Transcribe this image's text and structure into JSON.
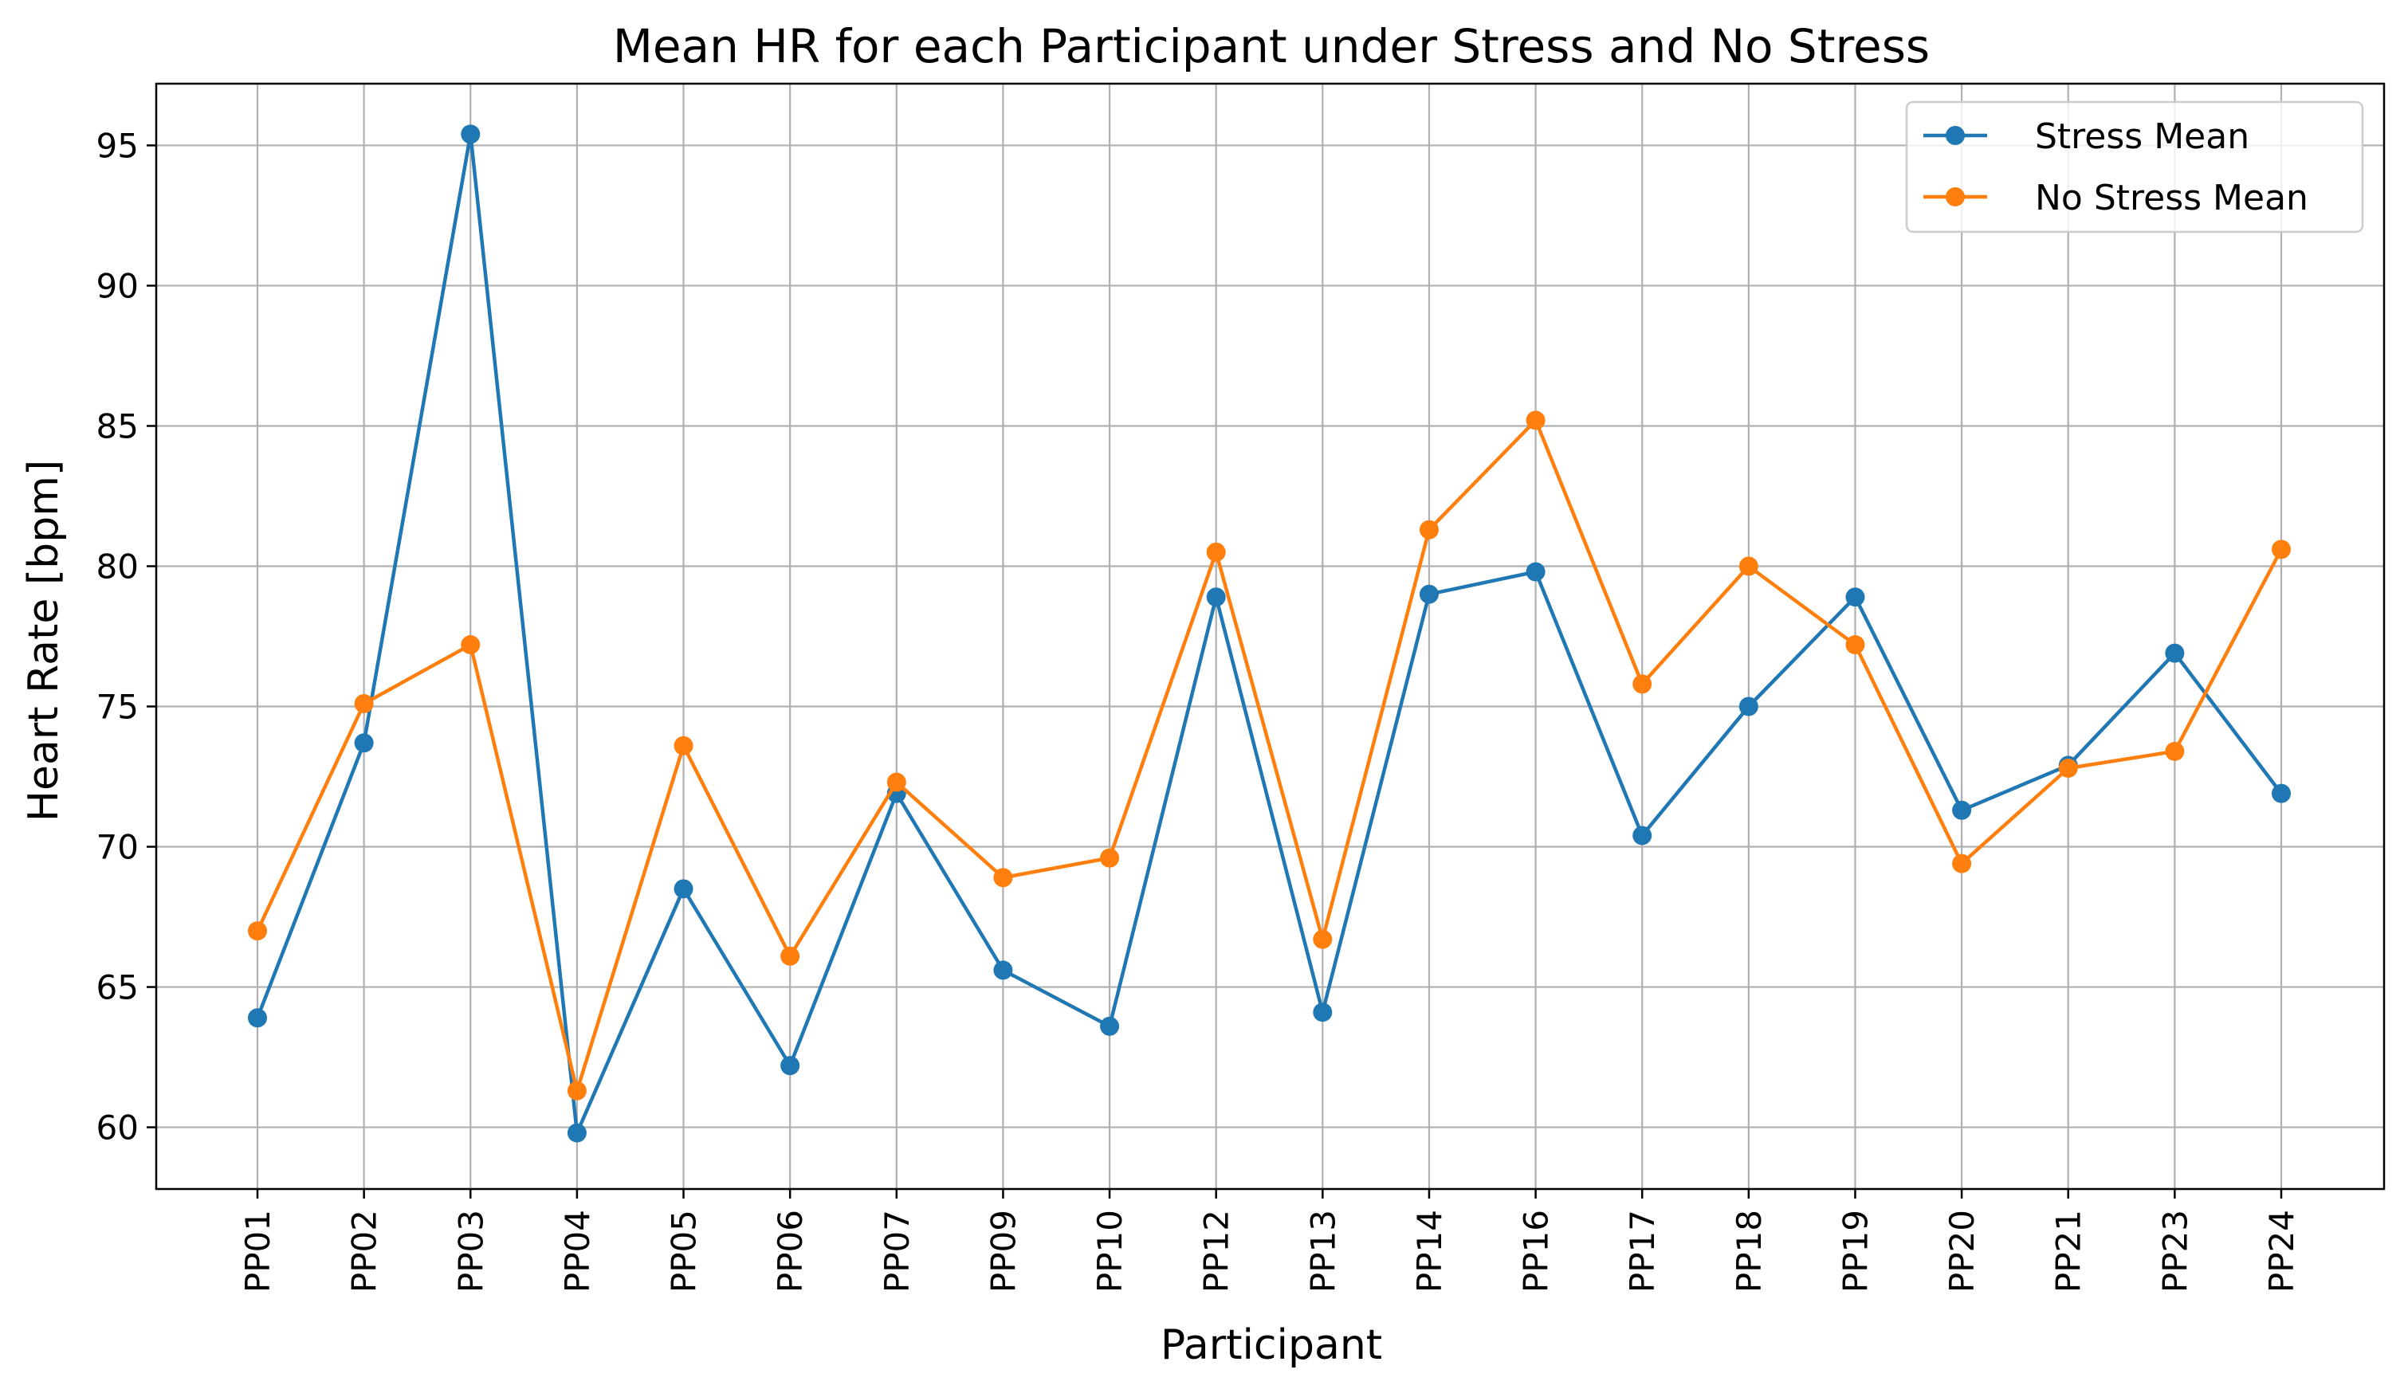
{
  "chart_data": {
    "type": "line",
    "title": "Mean HR for each Participant under Stress and No Stress",
    "xlabel": "Participant",
    "ylabel": "Heart Rate [bpm]",
    "categories": [
      "PP01",
      "PP02",
      "PP03",
      "PP04",
      "PP05",
      "PP06",
      "PP07",
      "PP09",
      "PP10",
      "PP12",
      "PP13",
      "PP14",
      "PP16",
      "PP17",
      "PP18",
      "PP19",
      "PP20",
      "PP21",
      "PP23",
      "PP24"
    ],
    "ylim": [
      57.8,
      97.2
    ],
    "yticks": [
      60,
      65,
      70,
      75,
      80,
      85,
      90,
      95
    ],
    "grid": true,
    "legend_position": "top-right",
    "series": [
      {
        "name": "Stress Mean",
        "color": "#1f77b4",
        "values": [
          63.9,
          73.7,
          95.4,
          59.8,
          68.5,
          62.2,
          71.9,
          65.6,
          63.6,
          78.9,
          64.1,
          79.0,
          79.8,
          70.4,
          75.0,
          78.9,
          71.3,
          72.9,
          76.9,
          71.9
        ]
      },
      {
        "name": "No Stress Mean",
        "color": "#ff7f0e",
        "values": [
          67.0,
          75.1,
          77.2,
          61.3,
          73.6,
          66.1,
          72.3,
          68.9,
          69.6,
          80.5,
          66.7,
          81.3,
          85.2,
          75.8,
          80.0,
          77.2,
          69.4,
          72.8,
          73.4,
          80.6
        ]
      }
    ]
  }
}
